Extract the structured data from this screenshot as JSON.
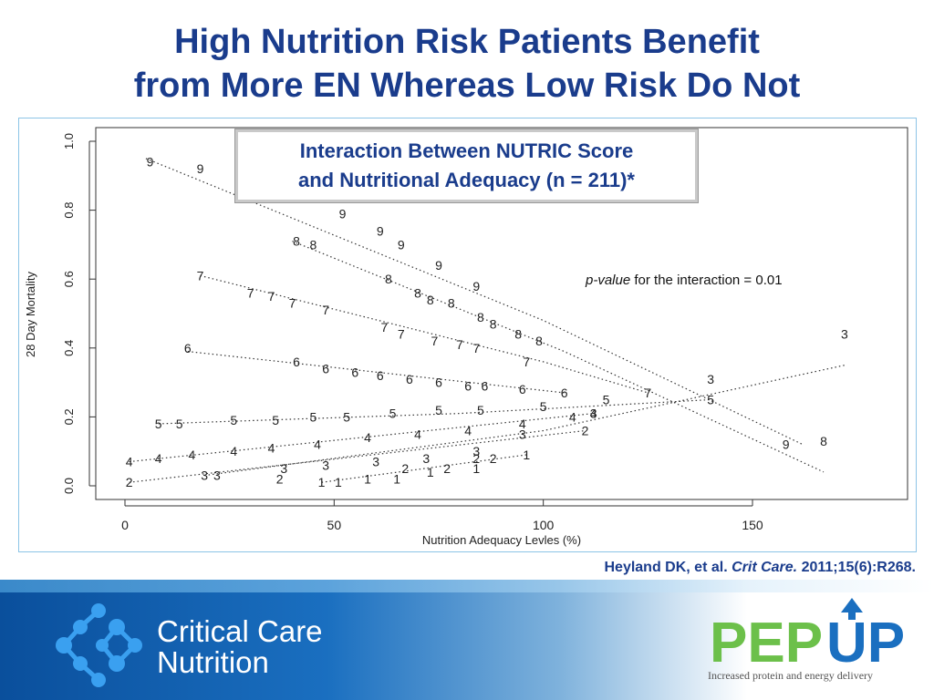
{
  "slide": {
    "title_line1": "High Nutrition Risk Patients Benefit",
    "title_line2": "from More EN Whereas Low Risk Do Not",
    "callout_line1": "Interaction Between NUTRIC Score",
    "callout_line2": "and Nutritional Adequacy (n = 211)*",
    "pvalue_label": "p-value",
    "pvalue_text": " for the interaction = 0.01",
    "citation_authors": "Heyland DK, et al.",
    "citation_journal": "Crit Care.",
    "citation_ref": "2011;15(6):R268.",
    "logo_left_line1": "Critical Care",
    "logo_left_line2": "Nutrition",
    "logo_right_pep": "PEP",
    "logo_right_up": "UP",
    "logo_right_tagline": "Increased protein and energy delivery"
  },
  "colors": {
    "title": "#1a3c8c",
    "pep_green": "#6cc04a",
    "up_blue": "#1a6fc0"
  },
  "chart_data": {
    "type": "scatter",
    "xlabel": "Nutrition Adequacy Levles (%)",
    "ylabel": "28 Day Mortality",
    "xlim": [
      0,
      150
    ],
    "ylim": [
      0,
      1
    ],
    "x_ticks": [
      0,
      50,
      100,
      150
    ],
    "y_ticks": [
      0.0,
      0.2,
      0.4,
      0.6,
      0.8,
      1.0
    ],
    "grid": false,
    "series": [
      {
        "name": "9",
        "points": [
          [
            6,
            0.94
          ],
          [
            18,
            0.92
          ],
          [
            52,
            0.79
          ],
          [
            61,
            0.74
          ],
          [
            66,
            0.7
          ],
          [
            75,
            0.64
          ],
          [
            84,
            0.58
          ],
          [
            158,
            0.12
          ]
        ],
        "line": [
          [
            5,
            0.95
          ],
          [
            100,
            0.48
          ],
          [
            162,
            0.12
          ]
        ]
      },
      {
        "name": "8",
        "points": [
          [
            41,
            0.71
          ],
          [
            45,
            0.7
          ],
          [
            63,
            0.6
          ],
          [
            70,
            0.56
          ],
          [
            73,
            0.54
          ],
          [
            78,
            0.53
          ],
          [
            85,
            0.49
          ],
          [
            88,
            0.47
          ],
          [
            94,
            0.44
          ],
          [
            99,
            0.42
          ],
          [
            167,
            0.13
          ]
        ],
        "line": [
          [
            40,
            0.71
          ],
          [
            105,
            0.39
          ],
          [
            167,
            0.04
          ]
        ]
      },
      {
        "name": "7",
        "points": [
          [
            18,
            0.61
          ],
          [
            30,
            0.56
          ],
          [
            35,
            0.55
          ],
          [
            40,
            0.53
          ],
          [
            48,
            0.51
          ],
          [
            62,
            0.46
          ],
          [
            66,
            0.44
          ],
          [
            74,
            0.42
          ],
          [
            80,
            0.41
          ],
          [
            84,
            0.4
          ],
          [
            96,
            0.36
          ],
          [
            125,
            0.27
          ]
        ],
        "line": [
          [
            18,
            0.61
          ],
          [
            100,
            0.36
          ],
          [
            125,
            0.27
          ]
        ]
      },
      {
        "name": "6",
        "points": [
          [
            15,
            0.4
          ],
          [
            41,
            0.36
          ],
          [
            48,
            0.34
          ],
          [
            55,
            0.33
          ],
          [
            61,
            0.32
          ],
          [
            68,
            0.31
          ],
          [
            75,
            0.3
          ],
          [
            82,
            0.29
          ],
          [
            86,
            0.29
          ],
          [
            95,
            0.28
          ],
          [
            105,
            0.27
          ]
        ],
        "line": [
          [
            15,
            0.39
          ],
          [
            105,
            0.27
          ]
        ]
      },
      {
        "name": "5",
        "points": [
          [
            8,
            0.18
          ],
          [
            13,
            0.18
          ],
          [
            26,
            0.19
          ],
          [
            36,
            0.19
          ],
          [
            45,
            0.2
          ],
          [
            53,
            0.2
          ],
          [
            64,
            0.21
          ],
          [
            75,
            0.22
          ],
          [
            85,
            0.22
          ],
          [
            100,
            0.23
          ],
          [
            115,
            0.25
          ],
          [
            140,
            0.25
          ]
        ],
        "line": [
          [
            8,
            0.18
          ],
          [
            80,
            0.21
          ],
          [
            140,
            0.25
          ]
        ]
      },
      {
        "name": "4",
        "points": [
          [
            1,
            0.07
          ],
          [
            8,
            0.08
          ],
          [
            16,
            0.09
          ],
          [
            26,
            0.1
          ],
          [
            35,
            0.11
          ],
          [
            46,
            0.12
          ],
          [
            58,
            0.14
          ],
          [
            70,
            0.15
          ],
          [
            82,
            0.16
          ],
          [
            95,
            0.18
          ],
          [
            107,
            0.2
          ],
          [
            112,
            0.21
          ]
        ],
        "line": [
          [
            1,
            0.07
          ],
          [
            112,
            0.21
          ]
        ]
      },
      {
        "name": "3",
        "points": [
          [
            19,
            0.03
          ],
          [
            22,
            0.03
          ],
          [
            38,
            0.05
          ],
          [
            48,
            0.06
          ],
          [
            60,
            0.07
          ],
          [
            72,
            0.08
          ],
          [
            84,
            0.1
          ],
          [
            95,
            0.15
          ],
          [
            112,
            0.21
          ],
          [
            140,
            0.31
          ],
          [
            172,
            0.44
          ]
        ],
        "line": [
          [
            19,
            0.03
          ],
          [
            100,
            0.16
          ],
          [
            172,
            0.35
          ]
        ]
      },
      {
        "name": "2",
        "points": [
          [
            1,
            0.01
          ],
          [
            37,
            0.02
          ],
          [
            67,
            0.05
          ],
          [
            77,
            0.05
          ],
          [
            84,
            0.08
          ],
          [
            88,
            0.08
          ],
          [
            110,
            0.16
          ]
        ],
        "line": [
          [
            1,
            0.01
          ],
          [
            110,
            0.16
          ]
        ]
      },
      {
        "name": "1",
        "points": [
          [
            47,
            0.01
          ],
          [
            51,
            0.01
          ],
          [
            58,
            0.02
          ],
          [
            65,
            0.02
          ],
          [
            73,
            0.04
          ],
          [
            84,
            0.05
          ],
          [
            96,
            0.09
          ]
        ],
        "line": [
          [
            47,
            0.01
          ],
          [
            96,
            0.09
          ]
        ]
      }
    ]
  }
}
